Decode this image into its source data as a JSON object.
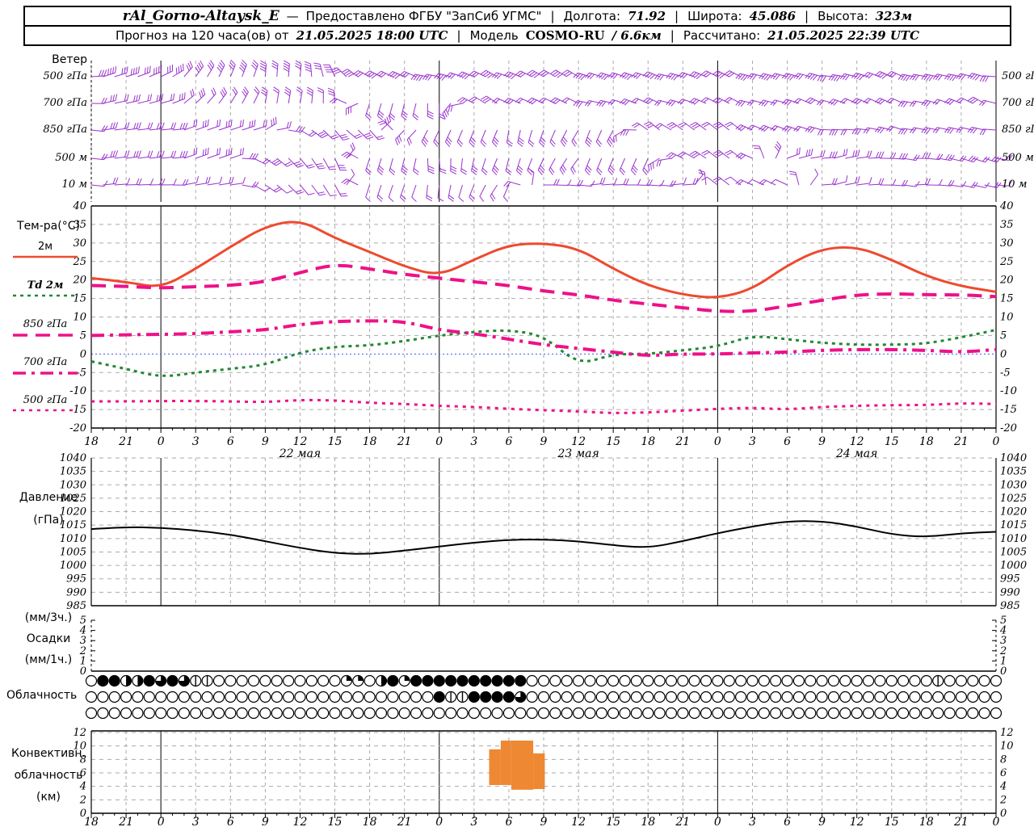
{
  "header": {
    "line1": {
      "station": "rAl_Gorno-Altaysk_E",
      "dash": "—",
      "provider": "Предоставлено ФГБУ \"ЗапСиб УГМС\"",
      "sep": "|",
      "lon_label": "Долгота:",
      "lon": "71.92",
      "lat_label": "Широта:",
      "lat": "45.086",
      "alt_label": "Высота:",
      "alt": "323м"
    },
    "line2": {
      "forecast_label": "Прогноз на 120 часа(ов) от",
      "forecast_time": "21.05.2025 18:00 UTC",
      "sep": "|",
      "model_label": "Модель",
      "model": "COSMO-RU",
      "model_res": "/ 6.6км",
      "calc_label": "Рассчитано:",
      "calc_time": "21.05.2025 22:39 UTC"
    }
  },
  "panel_labels": {
    "wind_title": "Ветер",
    "temp_title": "Тем-ра(°C)",
    "pressure_title1": "Давление",
    "pressure_title2": "(гПа)",
    "precip_title1": "(мм/3ч.)",
    "precip_title2": "Осадки",
    "precip_title3": "(мм/1ч.)",
    "cloud_title": "Облачность",
    "conv_title1": "Конвективн.",
    "conv_title2": "облачность",
    "conv_title3": "(км)"
  },
  "xaxis": {
    "total_hours": 78,
    "hour_step": 3,
    "hour_labels": [
      "18",
      "21",
      "0",
      "3",
      "6",
      "9",
      "12",
      "15",
      "18",
      "21",
      "0",
      "3",
      "6",
      "9",
      "12",
      "15",
      "18",
      "21",
      "0",
      "3",
      "6",
      "9",
      "12",
      "15",
      "18",
      "21",
      "0"
    ],
    "day_labels": [
      {
        "text": "22 мая",
        "h": 18
      },
      {
        "text": "23 мая",
        "h": 42
      },
      {
        "text": "24 мая",
        "h": 66
      }
    ]
  },
  "colors": {
    "wind_barb": "#9933cc",
    "t2m": "#ee4a2e",
    "td2m": "#228833",
    "magenta": "#ee1188",
    "pressure": "#000000",
    "conv_cloud": "#ee8833",
    "grid": "#aaaaaa",
    "zero_line": "#4455ff"
  },
  "chart_data": [
    {
      "id": "wind",
      "type": "barbs",
      "title": "Ветер",
      "levels": [
        {
          "label": "500 гПа",
          "angles": [
            10,
            15,
            30,
            50,
            70,
            80,
            85,
            120,
            150,
            160,
            165,
            160,
            155,
            150,
            155,
            160,
            165,
            160,
            155,
            160,
            165,
            170,
            165,
            160,
            165,
            170,
            170
          ]
        },
        {
          "label": "700 гПа",
          "angles": [
            5,
            10,
            20,
            40,
            60,
            75,
            80,
            100,
            250,
            260,
            265,
            155,
            150,
            155,
            160,
            165,
            160,
            160,
            155,
            160,
            165,
            160,
            155,
            160,
            165,
            160,
            155
          ]
        },
        {
          "label": "850 гПа",
          "angles": [
            0,
            5,
            10,
            15,
            20,
            25,
            -30,
            -45,
            -50,
            230,
            240,
            250,
            255,
            250,
            245,
            240,
            150,
            140,
            145,
            150,
            160,
            170,
            175,
            170,
            165,
            170,
            175
          ]
        },
        {
          "label": "500 м",
          "angles": [
            0,
            5,
            10,
            15,
            20,
            -40,
            -50,
            -60,
            250,
            260,
            270,
            260,
            250,
            245,
            240,
            245,
            250,
            150,
            145,
            150,
            20,
            10,
            5,
            0,
            -10,
            -15,
            -10
          ]
        },
        {
          "label": "10 м",
          "angles": [
            0,
            0,
            5,
            5,
            10,
            -40,
            -50,
            -55,
            250,
            255,
            260,
            250,
            240,
            0,
            0,
            0,
            0,
            0,
            145,
            150,
            155,
            10,
            5,
            0,
            -5,
            -10,
            -5
          ]
        }
      ]
    },
    {
      "id": "temperature",
      "type": "line",
      "title": "Тем-ра(°C)",
      "ylim": [
        -20,
        40
      ],
      "yticks": [
        40,
        35,
        30,
        25,
        20,
        15,
        10,
        5,
        0,
        -5,
        -10,
        -15,
        -20
      ],
      "x_step_hours": 3,
      "series": [
        {
          "name": "2м",
          "color": "#ee4a2e",
          "dash": "",
          "width": 3,
          "values": [
            20.5,
            19.5,
            17.8,
            23,
            29,
            34.5,
            36.3,
            31.3,
            27.6,
            23.6,
            21.1,
            25.5,
            29.5,
            30,
            28.5,
            23,
            18.5,
            16,
            15,
            17.5,
            24,
            28.5,
            29,
            25.5,
            21,
            18.3,
            16.8
          ]
        },
        {
          "name": "Td 2м",
          "color": "#228833",
          "dash": "4 5",
          "width": 3,
          "values": [
            -2,
            -4,
            -6.3,
            -5,
            -4,
            -3,
            0.5,
            2,
            2.3,
            3.5,
            5,
            6,
            6.5,
            5,
            -3,
            0,
            0,
            1,
            2,
            5,
            4,
            3,
            2.5,
            2.5,
            2.8,
            4.5,
            6.5
          ]
        },
        {
          "name": "850 гПа",
          "color": "#ee1188",
          "dash": "18 10",
          "width": 4,
          "values": [
            18.5,
            18.3,
            17.8,
            18.2,
            18.5,
            19.5,
            22,
            24.3,
            23,
            21.5,
            20.5,
            19.5,
            18.5,
            17,
            16,
            14.5,
            13.5,
            12.5,
            11.5,
            11.5,
            13,
            14.5,
            16,
            16.3,
            16,
            16,
            15.5
          ]
        },
        {
          "name": "700 гПа",
          "color": "#ee1188",
          "dash": "16 7 4 7",
          "width": 4,
          "values": [
            5,
            5.2,
            5.3,
            5.5,
            6,
            6.5,
            8,
            8.8,
            9,
            8.8,
            6.5,
            5.5,
            4,
            2.5,
            1.5,
            0.5,
            -0.5,
            0,
            0,
            0.3,
            0.5,
            1,
            1.2,
            1.2,
            1,
            0.5,
            1.2
          ]
        },
        {
          "name": "500 гПа",
          "color": "#ee1188",
          "dash": "4 6",
          "width": 3,
          "values": [
            -12.8,
            -12.8,
            -12.7,
            -12.7,
            -12.8,
            -13,
            -12.4,
            -12.5,
            -13.2,
            -13.5,
            -14,
            -14.3,
            -14.8,
            -15.2,
            -15.5,
            -16,
            -15.8,
            -15.3,
            -14.8,
            -14.5,
            -15,
            -14.3,
            -14,
            -13.8,
            -13.8,
            -13.3,
            -13.5
          ]
        }
      ]
    },
    {
      "id": "pressure",
      "type": "line",
      "title": "Давление (гПа)",
      "ylim": [
        985,
        1040
      ],
      "yticks": [
        1040,
        1035,
        1030,
        1025,
        1020,
        1015,
        1010,
        1005,
        1000,
        995,
        990,
        985
      ],
      "x_step_hours": 3,
      "series": [
        {
          "name": "Давление",
          "color": "#000000",
          "dash": "",
          "width": 2,
          "values": [
            1013.5,
            1014.3,
            1014,
            1013,
            1011.5,
            1009,
            1006.5,
            1004.5,
            1004.2,
            1005.5,
            1007,
            1008.5,
            1009.5,
            1009.7,
            1009,
            1007.5,
            1006.5,
            1009,
            1012,
            1014.5,
            1016.5,
            1016.5,
            1014.5,
            1011.5,
            1010.5,
            1012,
            1012.5
          ]
        }
      ]
    },
    {
      "id": "precip",
      "type": "bar",
      "title": "Осадки (мм/3ч., мм/1ч.)",
      "ylim": [
        0,
        5
      ],
      "yticks": [
        5,
        4,
        3,
        2,
        1,
        0
      ],
      "bars": []
    },
    {
      "id": "cloud",
      "type": "symbols",
      "title": "Облачность",
      "legend": "0=ясно(круг пустой), 8=сплошная(закрашен), 4=половина, 6=три четверти, 2=четверть, 1=малая",
      "rows": [
        [
          0,
          8,
          8,
          4,
          4,
          8,
          6,
          8,
          6,
          1,
          1,
          0,
          0,
          0,
          0,
          0,
          0,
          0,
          0,
          0,
          0,
          0,
          2,
          2,
          0,
          4,
          8,
          2,
          8,
          8,
          8,
          8,
          8,
          8,
          8,
          8,
          8,
          8,
          0,
          0,
          0,
          0,
          0,
          0,
          0,
          0,
          0,
          0,
          0,
          0,
          0,
          0,
          0,
          0,
          0,
          0,
          0,
          0,
          0,
          0,
          0,
          0,
          0,
          0,
          0,
          0,
          0,
          0,
          0,
          0,
          0,
          0,
          0,
          1,
          0,
          0,
          0,
          0,
          0
        ],
        [
          0,
          0,
          0,
          0,
          0,
          0,
          0,
          0,
          0,
          0,
          0,
          0,
          0,
          0,
          0,
          0,
          0,
          0,
          0,
          0,
          0,
          0,
          0,
          0,
          0,
          0,
          0,
          0,
          0,
          0,
          8,
          1,
          1,
          8,
          8,
          8,
          8,
          6,
          0,
          0,
          0,
          0,
          0,
          0,
          0,
          0,
          0,
          0,
          0,
          0,
          0,
          0,
          0,
          0,
          0,
          0,
          0,
          0,
          0,
          0,
          0,
          0,
          0,
          0,
          0,
          0,
          0,
          0,
          0,
          0,
          0,
          0,
          0,
          0,
          0,
          0,
          0,
          0,
          0
        ],
        [
          0,
          0,
          0,
          0,
          0,
          0,
          0,
          0,
          0,
          0,
          0,
          0,
          0,
          0,
          0,
          0,
          0,
          0,
          0,
          0,
          0,
          0,
          0,
          0,
          0,
          0,
          0,
          0,
          0,
          0,
          0,
          0,
          0,
          0,
          0,
          0,
          0,
          0,
          0,
          0,
          0,
          0,
          0,
          0,
          0,
          0,
          0,
          0,
          0,
          0,
          0,
          0,
          0,
          0,
          0,
          0,
          0,
          0,
          0,
          0,
          0,
          0,
          0,
          0,
          0,
          0,
          0,
          0,
          0,
          0,
          0,
          0,
          0,
          0,
          0,
          0,
          0,
          0,
          0
        ]
      ]
    },
    {
      "id": "convective",
      "type": "bar",
      "title": "Конвективн. облачность (км)",
      "ylim": [
        0,
        12
      ],
      "yticks": [
        12,
        10,
        8,
        6,
        4,
        2,
        0
      ],
      "bars": [
        {
          "h_from": 34.3,
          "h_to": 35.3,
          "base_km": 4.2,
          "top_km": 9.5
        },
        {
          "h_from": 35.3,
          "h_to": 36.2,
          "base_km": 4.2,
          "top_km": 10.8
        },
        {
          "h_from": 36.2,
          "h_to": 38.1,
          "base_km": 3.5,
          "top_km": 10.8
        },
        {
          "h_from": 38.1,
          "h_to": 39.1,
          "base_km": 3.6,
          "top_km": 8.9
        }
      ]
    }
  ]
}
